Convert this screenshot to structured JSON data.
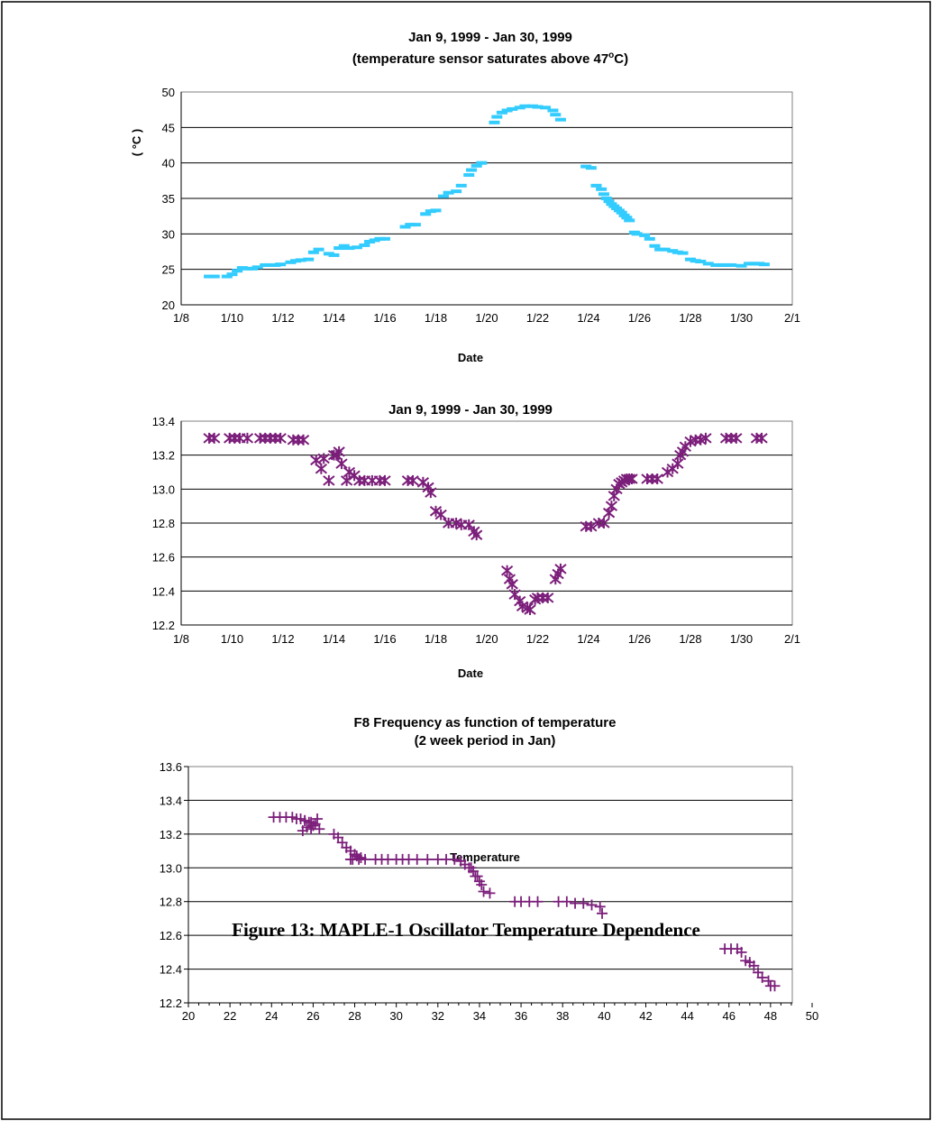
{
  "figure_caption": "Figure 13: MAPLE-1 Oscillator Temperature Dependence",
  "chart_data": [
    {
      "type": "scatter",
      "title": "Jan 9, 1999 - Jan 30, 1999",
      "subtitle_parts": [
        "(temperature sensor saturates above 47",
        "o",
        "C)"
      ],
      "xlabel": "Date",
      "ylabel": "( °C )",
      "x_ticks": [
        "1/8",
        "1/10",
        "1/12",
        "1/14",
        "1/16",
        "1/18",
        "1/20",
        "1/22",
        "1/24",
        "1/26",
        "1/28",
        "1/30",
        "2/1"
      ],
      "y_ticks": [
        "20",
        "25",
        "30",
        "35",
        "40",
        "45",
        "50"
      ],
      "xlim": [
        8,
        32
      ],
      "ylim": [
        20,
        50
      ],
      "grid": "horizontal",
      "marker": "dash",
      "color": "#33ccff",
      "series": [
        {
          "x": [
            9.1,
            9.3,
            9.8,
            10.0,
            10.2,
            10.4,
            10.6,
            10.8,
            11.0,
            11.3,
            11.5,
            11.7,
            11.9,
            12.3,
            12.5,
            12.7,
            13.0,
            13.2,
            13.4,
            13.8,
            14.0,
            14.2,
            14.4,
            14.6,
            14.9,
            15.2,
            15.4,
            15.6,
            15.8,
            16.0,
            16.8,
            17.0,
            17.2,
            17.6,
            17.8,
            18.0,
            18.3,
            18.5,
            18.8,
            19.0,
            19.3,
            19.4,
            19.6,
            19.8,
            20.3,
            20.4,
            20.6,
            20.8,
            21.0,
            21.3,
            21.5,
            21.8,
            22.0,
            22.3,
            22.6,
            22.7,
            22.9,
            23.9,
            24.1,
            24.3,
            24.5,
            24.6,
            24.7,
            24.8,
            24.9,
            25.0,
            25.1,
            25.2,
            25.3,
            25.4,
            25.5,
            25.6,
            25.8,
            25.9,
            26.2,
            26.4,
            26.6,
            26.8,
            27.0,
            27.3,
            27.5,
            27.7,
            28.0,
            28.2,
            28.4,
            28.7,
            29.0,
            29.2,
            29.4,
            29.6,
            30.0,
            30.3,
            30.5,
            30.7,
            30.9
          ],
          "y": [
            24.0,
            24.0,
            24.0,
            24.3,
            24.8,
            25.2,
            25.1,
            25.1,
            25.3,
            25.6,
            25.6,
            25.6,
            25.7,
            26.0,
            26.2,
            26.3,
            26.4,
            27.4,
            27.8,
            27.2,
            27.0,
            28.0,
            28.3,
            28.0,
            28.1,
            28.4,
            28.9,
            29.1,
            29.3,
            29.3,
            31.0,
            31.3,
            31.3,
            32.8,
            33.2,
            33.3,
            35.3,
            35.8,
            36.0,
            36.8,
            38.3,
            39.0,
            39.6,
            40.0,
            45.7,
            46.5,
            47.1,
            47.4,
            47.6,
            47.8,
            48.0,
            48.0,
            47.9,
            47.8,
            47.4,
            46.8,
            46.1,
            39.5,
            39.3,
            36.8,
            36.3,
            35.6,
            35.0,
            34.6,
            34.2,
            33.9,
            33.6,
            33.3,
            33.0,
            32.6,
            32.3,
            31.9,
            30.2,
            30.0,
            29.8,
            29.3,
            28.3,
            27.8,
            27.8,
            27.6,
            27.4,
            27.3,
            26.4,
            26.2,
            26.1,
            25.8,
            25.6,
            25.6,
            25.6,
            25.6,
            25.5,
            25.8,
            25.8,
            25.8,
            25.7
          ]
        }
      ]
    },
    {
      "type": "scatter",
      "title": "Jan 9, 1999 - Jan 30, 1999",
      "xlabel": "Date",
      "ylabel": "",
      "x_ticks": [
        "1/8",
        "1/10",
        "1/12",
        "1/14",
        "1/16",
        "1/18",
        "1/20",
        "1/22",
        "1/24",
        "1/26",
        "1/28",
        "1/30",
        "2/1"
      ],
      "y_ticks": [
        "12.2",
        "12.4",
        "12.6",
        "12.8",
        "13.0",
        "13.2",
        "13.4"
      ],
      "xlim": [
        8,
        32
      ],
      "ylim": [
        12.2,
        13.4
      ],
      "grid": "horizontal",
      "marker": "star",
      "color": "#7b1e7a",
      "series": [
        {
          "x": [
            9.1,
            9.3,
            9.9,
            10.1,
            10.3,
            10.6,
            11.1,
            11.3,
            11.5,
            11.7,
            11.9,
            12.4,
            12.6,
            12.8,
            13.3,
            13.5,
            13.6,
            13.8,
            14.0,
            14.1,
            14.2,
            14.3,
            14.5,
            14.6,
            14.8,
            15.0,
            15.2,
            15.5,
            15.8,
            16.0,
            16.9,
            17.1,
            17.5,
            17.7,
            17.8,
            18.0,
            18.2,
            18.5,
            18.8,
            19.0,
            19.3,
            19.5,
            19.6,
            20.8,
            20.9,
            21.0,
            21.1,
            21.3,
            21.4,
            21.6,
            21.7,
            21.9,
            22.0,
            22.2,
            22.4,
            22.7,
            22.8,
            22.9,
            23.9,
            24.1,
            24.4,
            24.6,
            24.8,
            24.9,
            25.0,
            25.1,
            25.2,
            25.3,
            25.4,
            25.5,
            25.6,
            25.7,
            26.3,
            26.5,
            26.7,
            27.1,
            27.3,
            27.5,
            27.6,
            27.7,
            27.8,
            28.0,
            28.2,
            28.4,
            28.6,
            29.4,
            29.6,
            29.8,
            30.6,
            30.8
          ],
          "y": [
            13.3,
            13.3,
            13.3,
            13.3,
            13.3,
            13.3,
            13.3,
            13.3,
            13.3,
            13.3,
            13.3,
            13.29,
            13.29,
            13.29,
            13.17,
            13.12,
            13.18,
            13.05,
            13.2,
            13.2,
            13.22,
            13.15,
            13.05,
            13.1,
            13.08,
            13.05,
            13.05,
            13.05,
            13.05,
            13.05,
            13.05,
            13.05,
            13.04,
            13.01,
            12.98,
            12.87,
            12.85,
            12.8,
            12.8,
            12.79,
            12.79,
            12.75,
            12.73,
            12.52,
            12.47,
            12.44,
            12.38,
            12.34,
            12.31,
            12.3,
            12.29,
            12.35,
            12.36,
            12.36,
            12.36,
            12.47,
            12.5,
            12.53,
            12.78,
            12.78,
            12.8,
            12.8,
            12.86,
            12.9,
            12.96,
            13.0,
            13.03,
            13.04,
            13.05,
            13.06,
            13.06,
            13.06,
            13.06,
            13.06,
            13.06,
            13.1,
            13.12,
            13.15,
            13.2,
            13.22,
            13.25,
            13.28,
            13.29,
            13.29,
            13.3,
            13.3,
            13.3,
            13.3,
            13.3,
            13.3
          ]
        }
      ]
    },
    {
      "type": "scatter",
      "title": "F8 Frequency as function of temperature",
      "subtitle": "(2 week period in Jan)",
      "xlabel": "Temperature",
      "ylabel": "",
      "x_ticks": [
        "20",
        "22",
        "24",
        "26",
        "28",
        "30",
        "32",
        "34",
        "36",
        "38",
        "40",
        "42",
        "44",
        "46",
        "48",
        "50"
      ],
      "y_ticks": [
        "12.2",
        "12.4",
        "12.6",
        "12.8",
        "13.0",
        "13.2",
        "13.4",
        "13.6"
      ],
      "xlim": [
        20,
        50
      ],
      "ylim": [
        12.2,
        13.6
      ],
      "grid": "horizontal",
      "marker": "plus",
      "color": "#7b1e7a",
      "series": [
        {
          "x": [
            24.1,
            24.4,
            24.7,
            25.0,
            25.2,
            25.4,
            25.6,
            25.8,
            26.0,
            26.2,
            25.5,
            25.7,
            25.9,
            26.1,
            25.6,
            25.9,
            26.3,
            27.0,
            27.2,
            27.4,
            27.6,
            27.8,
            28.0,
            27.9,
            28.1,
            28.3,
            28.5,
            27.8,
            28.2,
            29.0,
            29.3,
            29.6,
            30.0,
            30.3,
            30.6,
            31.0,
            31.5,
            32.0,
            32.4,
            32.8,
            33.1,
            33.3,
            33.5,
            33.7,
            33.9,
            34.1,
            33.6,
            33.8,
            34.0,
            34.2,
            34.5,
            35.7,
            36.0,
            36.4,
            36.8,
            37.8,
            38.2,
            38.6,
            39.0,
            39.4,
            39.8,
            39.9,
            45.8,
            46.1,
            46.4,
            46.6,
            46.8,
            47.0,
            47.2,
            47.4,
            47.6,
            47.9,
            48.0,
            48.2
          ],
          "y": [
            13.3,
            13.3,
            13.3,
            13.3,
            13.29,
            13.29,
            13.28,
            13.27,
            13.25,
            13.29,
            13.22,
            13.24,
            13.23,
            13.26,
            13.28,
            13.27,
            13.23,
            13.2,
            13.18,
            13.15,
            13.12,
            13.1,
            13.08,
            13.05,
            13.07,
            13.06,
            13.05,
            13.05,
            13.05,
            13.05,
            13.05,
            13.05,
            13.05,
            13.05,
            13.05,
            13.05,
            13.05,
            13.05,
            13.05,
            13.05,
            13.04,
            13.02,
            13.0,
            12.98,
            12.95,
            12.9,
            13.0,
            12.95,
            12.92,
            12.86,
            12.85,
            12.8,
            12.8,
            12.8,
            12.8,
            12.8,
            12.8,
            12.79,
            12.79,
            12.78,
            12.77,
            12.73,
            12.52,
            12.52,
            12.52,
            12.5,
            12.45,
            12.44,
            12.42,
            12.38,
            12.35,
            12.33,
            12.3,
            12.3
          ]
        }
      ]
    }
  ]
}
